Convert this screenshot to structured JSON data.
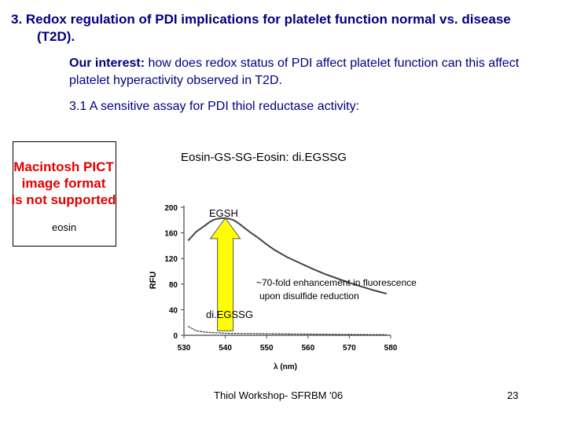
{
  "slide": {
    "title_line1": "3. Redox regulation of PDI implications for platelet function normal vs. disease",
    "title_line2": "(T2D).",
    "interest_label": "Our interest:",
    "interest_text": " how does redox status of PDI affect platelet  function can this affect platelet hyperactivity observed in T2D.",
    "assay_heading": "3.1 A sensitive assay for PDI thiol reductase activity:",
    "pict_message_lines": [
      "Macintosh PICT",
      "image format",
      "is not supported"
    ],
    "eosin_label": "eosin",
    "compound_label": "Eosin-GS-SG-Eosin: di.EGSSG",
    "footer": "Thiol Workshop- SFRBM '06",
    "page_number": "23"
  },
  "chart_data": {
    "type": "line",
    "xlabel": "λ (nm)",
    "ylabel": "RFU",
    "xlim": [
      530,
      580
    ],
    "ylim": [
      0,
      200
    ],
    "x_ticks": [
      "530",
      "540",
      "550",
      "560",
      "570",
      "580"
    ],
    "y_ticks": [
      "0",
      "40",
      "80",
      "120",
      "160",
      "200"
    ],
    "series": [
      {
        "name": "EGSH",
        "x": [
          531,
          533,
          535,
          536,
          537,
          538,
          539,
          540,
          541,
          542,
          543,
          544,
          545,
          546,
          548,
          550,
          552,
          555,
          558,
          561,
          564,
          567,
          570,
          573,
          576,
          579
        ],
        "y": [
          148,
          162,
          171,
          176,
          180,
          182,
          183,
          183,
          182,
          180,
          176,
          171,
          166,
          161,
          152,
          142,
          133,
          122,
          113,
          104,
          96,
          89,
          82,
          76,
          70,
          65
        ]
      },
      {
        "name": "di.EGSSG",
        "x": [
          531,
          533,
          535,
          537,
          539,
          541,
          545,
          550,
          555,
          560,
          565,
          570,
          575,
          579
        ],
        "y": [
          14,
          7,
          5,
          4,
          3.5,
          3,
          2.8,
          2.5,
          2,
          1.8,
          1.5,
          1.2,
          1,
          0.8
        ]
      }
    ],
    "annotations": [
      {
        "text": "EGSH"
      },
      {
        "text": "~70-fold enhancement in fluorescence"
      },
      {
        "text": "upon disulfide reduction"
      },
      {
        "text": "di.EGSSG"
      }
    ],
    "arrow_color": "#ffff00"
  }
}
